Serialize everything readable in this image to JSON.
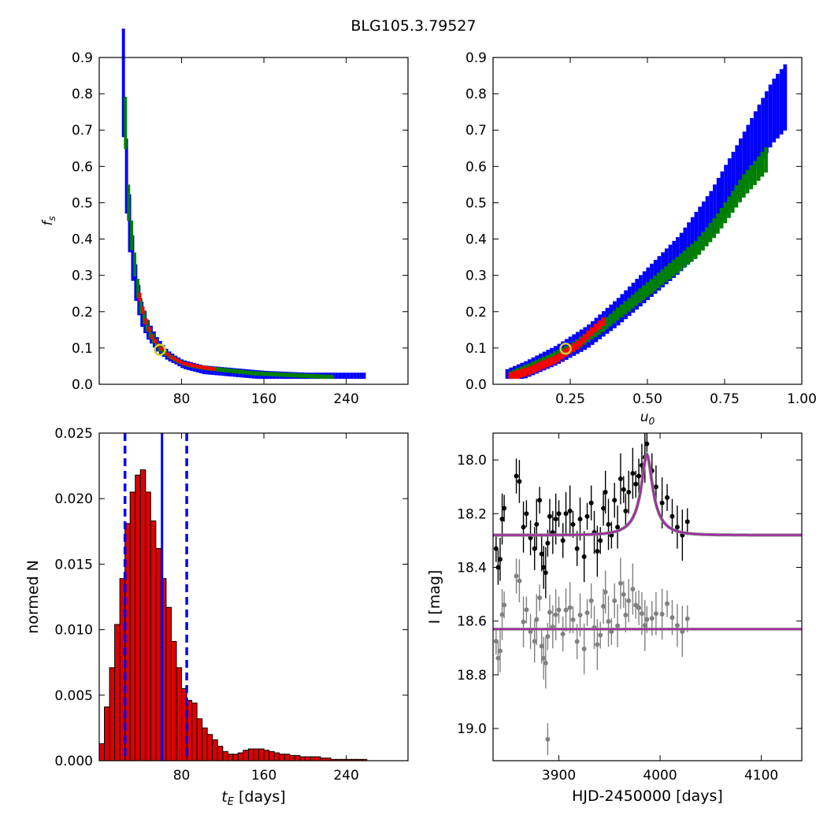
{
  "figure": {
    "title": "BLG105.3.79527"
  },
  "colors": {
    "inner": "#ff0000",
    "mid": "#008000",
    "outer": "#0000ff",
    "marker": "#cccc33",
    "hist": "#dd0000",
    "model": "#aa22aa",
    "residual": "#808080"
  },
  "chart_data": [
    {
      "id": "fs_vs_te",
      "type": "heatmap",
      "title": "",
      "xlabel": "",
      "ylabel": "f_s",
      "xlim": [
        0,
        300
      ],
      "ylim": [
        0.0,
        0.9
      ],
      "xticks": [
        80,
        160,
        240
      ],
      "yticks": [
        0.0,
        0.1,
        0.2,
        0.3,
        0.4,
        0.5,
        0.6,
        0.7,
        0.8,
        0.9
      ],
      "levels": [
        "1-sigma (red)",
        "2-sigma (green)",
        "3-sigma (blue)"
      ],
      "outer_curve": [
        [
          22,
          0.83
        ],
        [
          24,
          0.62
        ],
        [
          27,
          0.48
        ],
        [
          30,
          0.37
        ],
        [
          34,
          0.28
        ],
        [
          39,
          0.2
        ],
        [
          46,
          0.15
        ],
        [
          55,
          0.11
        ],
        [
          65,
          0.08
        ],
        [
          80,
          0.055
        ],
        [
          100,
          0.04
        ],
        [
          120,
          0.035
        ],
        [
          160,
          0.025
        ],
        [
          200,
          0.02
        ],
        [
          257,
          0.02
        ]
      ],
      "mid_curve": [
        [
          24,
          0.72
        ],
        [
          27,
          0.5
        ],
        [
          31,
          0.38
        ],
        [
          35,
          0.28
        ],
        [
          40,
          0.2
        ],
        [
          48,
          0.14
        ],
        [
          57,
          0.1
        ],
        [
          68,
          0.075
        ],
        [
          82,
          0.055
        ],
        [
          100,
          0.045
        ],
        [
          150,
          0.03
        ],
        [
          225,
          0.02
        ]
      ],
      "inner_curve": [
        [
          38,
          0.24
        ],
        [
          43,
          0.18
        ],
        [
          50,
          0.13
        ],
        [
          58,
          0.1
        ],
        [
          68,
          0.075
        ],
        [
          80,
          0.058
        ],
        [
          95,
          0.048
        ],
        [
          110,
          0.042
        ]
      ],
      "best_fit": {
        "x": 59,
        "y": 0.095
      }
    },
    {
      "id": "fs_vs_u0",
      "type": "heatmap",
      "title": "",
      "xlabel": "u_0",
      "ylabel": "",
      "xlim": [
        0.0,
        1.0
      ],
      "ylim": [
        0.0,
        0.9
      ],
      "xticks": [
        0.25,
        0.5,
        0.75,
        1.0
      ],
      "yticks": [
        0.0,
        0.1,
        0.2,
        0.3,
        0.4,
        0.5,
        0.6,
        0.7,
        0.8,
        0.9
      ],
      "outer_curve": [
        [
          0.04,
          0.02
        ],
        [
          0.1,
          0.04
        ],
        [
          0.2,
          0.08
        ],
        [
          0.3,
          0.13
        ],
        [
          0.4,
          0.2
        ],
        [
          0.5,
          0.28
        ],
        [
          0.6,
          0.36
        ],
        [
          0.7,
          0.47
        ],
        [
          0.78,
          0.58
        ],
        [
          0.85,
          0.68
        ],
        [
          0.9,
          0.75
        ],
        [
          0.95,
          0.8
        ]
      ],
      "mid_curve": [
        [
          0.05,
          0.025
        ],
        [
          0.15,
          0.06
        ],
        [
          0.25,
          0.1
        ],
        [
          0.35,
          0.16
        ],
        [
          0.45,
          0.23
        ],
        [
          0.55,
          0.3
        ],
        [
          0.65,
          0.37
        ],
        [
          0.72,
          0.44
        ],
        [
          0.8,
          0.54
        ],
        [
          0.88,
          0.62
        ]
      ],
      "inner_curve": [
        [
          0.05,
          0.02
        ],
        [
          0.12,
          0.04
        ],
        [
          0.2,
          0.07
        ],
        [
          0.27,
          0.11
        ],
        [
          0.32,
          0.15
        ],
        [
          0.36,
          0.18
        ]
      ],
      "best_fit": {
        "x": 0.235,
        "y": 0.098
      }
    },
    {
      "id": "te_histogram",
      "type": "bar",
      "title": "",
      "xlabel": "t_E [days]",
      "ylabel": "normed N",
      "xlim": [
        0,
        300
      ],
      "ylim": [
        0.0,
        0.025
      ],
      "xticks": [
        80,
        160,
        240
      ],
      "yticks": [
        0.0,
        0.005,
        0.01,
        0.015,
        0.02,
        0.025
      ],
      "bin_width": 5,
      "bin_start": 0,
      "values": [
        0.0013,
        0.0041,
        0.0071,
        0.0104,
        0.0139,
        0.0181,
        0.0205,
        0.0218,
        0.0222,
        0.0205,
        0.0183,
        0.0162,
        0.0139,
        0.0117,
        0.0091,
        0.0071,
        0.0055,
        0.0046,
        0.0044,
        0.0032,
        0.0025,
        0.002,
        0.0016,
        0.0011,
        0.0007,
        0.0005,
        0.0005,
        0.0006,
        0.0008,
        0.0009,
        0.0009,
        0.0009,
        0.0008,
        0.0007,
        0.0006,
        0.0005,
        0.0005,
        0.0004,
        0.0004,
        0.0003,
        0.0003,
        0.0003,
        0.0003,
        0.0002,
        0.0002,
        0.0001,
        0.0001,
        0.0001,
        0.0001,
        0.0001,
        0.0001,
        0.0001
      ],
      "median": 61,
      "lower": 25,
      "upper": 85
    },
    {
      "id": "light_curve",
      "type": "scatter",
      "title": "",
      "xlabel": "HJD-2450000 [days]",
      "ylabel": "I [mag]",
      "xlim": [
        3835,
        4140
      ],
      "ylim": [
        19.12,
        17.9
      ],
      "y_inverted": true,
      "xticks": [
        3900,
        4000,
        4100
      ],
      "yticks": [
        18.0,
        18.2,
        18.4,
        18.6,
        18.8,
        19.0
      ],
      "model": {
        "baseline": 18.28,
        "peak_mag": 17.98,
        "t0": 3987,
        "tE": 22,
        "u0": 0.235
      },
      "residual_baseline": 18.63,
      "data_points": {
        "t": [
          3838,
          3840,
          3842,
          3844,
          3846,
          3858,
          3861,
          3865,
          3868,
          3872,
          3876,
          3878,
          3881,
          3883,
          3885,
          3887,
          3889,
          3891,
          3894,
          3897,
          3900,
          3904,
          3907,
          3911,
          3914,
          3918,
          3921,
          3925,
          3928,
          3932,
          3935,
          3938,
          3941,
          3944,
          3946,
          3949,
          3952,
          3955,
          3958,
          3961,
          3964,
          3966,
          3969,
          3973,
          3976,
          3979,
          3982,
          3985,
          3987,
          3992,
          3996,
          4002,
          4007,
          4012,
          4017,
          4022,
          4027
        ],
        "mag": [
          18.33,
          18.4,
          18.37,
          18.22,
          18.18,
          18.06,
          18.08,
          18.25,
          18.2,
          18.29,
          18.33,
          18.24,
          18.15,
          18.35,
          18.4,
          18.42,
          18.31,
          18.21,
          18.27,
          18.22,
          18.2,
          18.3,
          18.2,
          18.19,
          18.24,
          18.33,
          18.22,
          18.36,
          18.21,
          18.16,
          18.27,
          18.34,
          18.3,
          18.18,
          18.12,
          18.24,
          18.28,
          18.15,
          18.25,
          18.07,
          18.11,
          18.19,
          18.12,
          18.05,
          18.09,
          18.06,
          18.02,
          17.99,
          17.94,
          18.04,
          18.1,
          18.16,
          18.14,
          18.21,
          18.25,
          18.28,
          18.23
        ]
      }
    }
  ]
}
